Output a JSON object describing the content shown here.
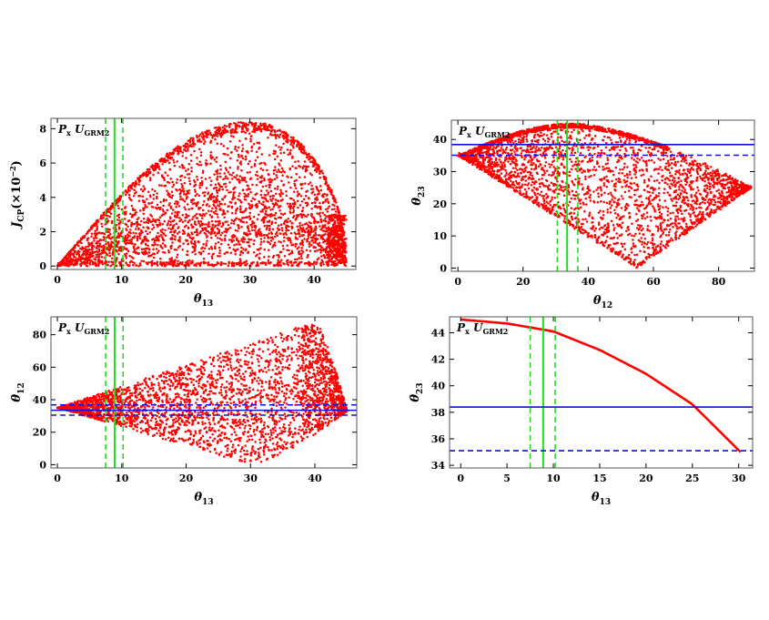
{
  "colors": {
    "scatter": "#ff0000",
    "green": "#22dd22",
    "blue": "#1111dd",
    "frame": "#555555"
  },
  "chart_data": [
    {
      "type": "scatter",
      "panel_label": {
        "main": "P",
        "main_sub": "x",
        "U": " U",
        "U_sub": "GRM2"
      },
      "xlabel": {
        "main": "θ",
        "sub": "13"
      },
      "ylabel": {
        "main": "J",
        "sub": "CP",
        "rest": "(×10",
        "exp": "−2",
        "close": ")"
      },
      "xlim": [
        -1,
        46.5
      ],
      "ylim": [
        -0.2,
        8.6
      ],
      "xticks": [
        0,
        10,
        20,
        30,
        40
      ],
      "yticks": [
        0,
        2,
        4,
        6,
        8
      ],
      "tick_labels_x": [
        "0",
        "10",
        "20",
        "30",
        "40"
      ],
      "tick_labels_y": [
        "0",
        "2",
        "4",
        "6",
        "8"
      ],
      "region": {
        "shape": "jcp",
        "max_angle": 45,
        "peak": 8.4,
        "peak_at": 30
      },
      "vlines": [
        {
          "x": 8.9,
          "style": "solid",
          "color": "green"
        },
        {
          "x": 7.5,
          "style": "dashed",
          "color": "green"
        },
        {
          "x": 10.2,
          "style": "dashed",
          "color": "green"
        }
      ],
      "hlines": []
    },
    {
      "type": "scatter",
      "panel_label": {
        "main": "P",
        "main_sub": "x",
        "U": " U",
        "U_sub": "GRM2"
      },
      "xlabel": {
        "main": "θ",
        "sub": "12"
      },
      "ylabel": {
        "main": "θ",
        "sub": "23"
      },
      "xlim": [
        -2,
        91
      ],
      "ylim": [
        -1,
        46
      ],
      "xticks": [
        0,
        20,
        40,
        60,
        80
      ],
      "yticks": [
        0,
        10,
        20,
        30,
        40
      ],
      "tick_labels_x": [
        "0",
        "20",
        "40",
        "60",
        "80"
      ],
      "tick_labels_y": [
        "0",
        "10",
        "20",
        "30",
        "40"
      ],
      "region": {
        "shape": "t12t23"
      },
      "vlines": [
        {
          "x": 33.5,
          "style": "solid",
          "color": "green"
        },
        {
          "x": 30.5,
          "style": "dashed",
          "color": "green"
        },
        {
          "x": 36.8,
          "style": "dashed",
          "color": "green"
        }
      ],
      "hlines": [
        {
          "y": 38.4,
          "style": "solid",
          "color": "blue"
        },
        {
          "y": 35.1,
          "style": "dashed",
          "color": "blue"
        }
      ]
    },
    {
      "type": "scatter",
      "panel_label": {
        "main": "P",
        "main_sub": "x",
        "U": " U",
        "U_sub": "GRM2"
      },
      "xlabel": {
        "main": "θ",
        "sub": "13"
      },
      "ylabel": {
        "main": "θ",
        "sub": "12"
      },
      "xlim": [
        -1,
        46.5
      ],
      "ylim": [
        -2,
        91
      ],
      "xticks": [
        0,
        10,
        20,
        30,
        40
      ],
      "yticks": [
        0,
        20,
        40,
        60,
        80
      ],
      "tick_labels_x": [
        "0",
        "10",
        "20",
        "30",
        "40"
      ],
      "tick_labels_y": [
        "0",
        "20",
        "40",
        "60",
        "80"
      ],
      "region": {
        "shape": "t13t12"
      },
      "vlines": [
        {
          "x": 8.9,
          "style": "solid",
          "color": "green"
        },
        {
          "x": 7.5,
          "style": "dashed",
          "color": "green"
        },
        {
          "x": 10.2,
          "style": "dashed",
          "color": "green"
        }
      ],
      "hlines": [
        {
          "y": 33.5,
          "style": "solid",
          "color": "blue"
        },
        {
          "y": 30.5,
          "style": "dashed",
          "color": "blue"
        },
        {
          "y": 36.8,
          "style": "dashed",
          "color": "blue"
        }
      ]
    },
    {
      "type": "line",
      "panel_label": {
        "main": "P",
        "main_sub": "x",
        "U": " U",
        "U_sub": "GRM2"
      },
      "xlabel": {
        "main": "θ",
        "sub": "13"
      },
      "ylabel": {
        "main": "θ",
        "sub": "23"
      },
      "xlim": [
        -1.2,
        31.5
      ],
      "ylim": [
        33.8,
        45.2
      ],
      "xticks": [
        0,
        5,
        10,
        15,
        20,
        25,
        30
      ],
      "yticks": [
        34,
        36,
        38,
        40,
        42,
        44
      ],
      "tick_labels_x": [
        "0",
        "5",
        "10",
        "15",
        "20",
        "25",
        "30"
      ],
      "tick_labels_y": [
        "34",
        "36",
        "38",
        "40",
        "42",
        "44"
      ],
      "series": [
        {
          "x": [
            0,
            5,
            10,
            15,
            20,
            25,
            30.2
          ],
          "y": [
            45.0,
            44.7,
            44.1,
            42.7,
            40.9,
            38.6,
            35.0
          ]
        }
      ],
      "vlines": [
        {
          "x": 8.9,
          "style": "solid",
          "color": "green"
        },
        {
          "x": 7.5,
          "style": "dashed",
          "color": "green"
        },
        {
          "x": 10.2,
          "style": "dashed",
          "color": "green"
        }
      ],
      "hlines": [
        {
          "y": 38.4,
          "style": "solid",
          "color": "blue"
        },
        {
          "y": 35.1,
          "style": "dashed",
          "color": "blue"
        }
      ]
    }
  ]
}
